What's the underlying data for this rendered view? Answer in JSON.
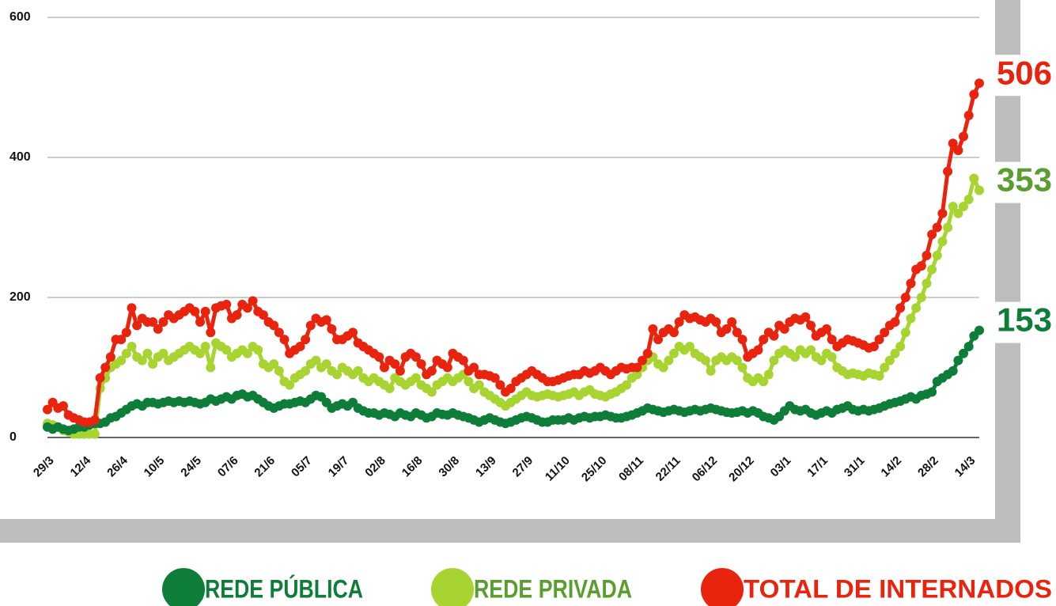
{
  "chart_data": {
    "type": "line",
    "categories": [
      "29/3",
      null,
      null,
      null,
      null,
      null,
      null,
      "12/4",
      null,
      null,
      null,
      null,
      null,
      null,
      "26/4",
      null,
      null,
      null,
      null,
      null,
      null,
      "10/5",
      null,
      null,
      null,
      null,
      null,
      null,
      "24/5",
      null,
      null,
      null,
      null,
      null,
      null,
      "07/6",
      null,
      null,
      null,
      null,
      null,
      null,
      "21/6",
      null,
      null,
      null,
      null,
      null,
      null,
      "05/7",
      null,
      null,
      null,
      null,
      null,
      null,
      "19/7",
      null,
      null,
      null,
      null,
      null,
      null,
      "02/8",
      null,
      null,
      null,
      null,
      null,
      null,
      "16/8",
      null,
      null,
      null,
      null,
      null,
      null,
      "30/8",
      null,
      null,
      null,
      null,
      null,
      null,
      "13/9",
      null,
      null,
      null,
      null,
      null,
      null,
      "27/9",
      null,
      null,
      null,
      null,
      null,
      null,
      "11/10",
      null,
      null,
      null,
      null,
      null,
      null,
      "25/10",
      null,
      null,
      null,
      null,
      null,
      null,
      "08/11",
      null,
      null,
      null,
      null,
      null,
      null,
      "22/11",
      null,
      null,
      null,
      null,
      null,
      null,
      "06/12",
      null,
      null,
      null,
      null,
      null,
      null,
      "20/12",
      null,
      null,
      null,
      null,
      null,
      null,
      "03/1",
      null,
      null,
      null,
      null,
      null,
      null,
      "17/1",
      null,
      null,
      null,
      null,
      null,
      null,
      "31/1",
      null,
      null,
      null,
      null,
      null,
      null,
      "14/2",
      null,
      null,
      null,
      null,
      null,
      null,
      "28/2",
      null,
      null,
      null,
      null,
      null,
      null,
      "14/3",
      null,
      null
    ],
    "series": [
      {
        "name": "REDE PÚBLICA",
        "color": "#0e7d3a",
        "label_color": "#0e7d3a",
        "values": [
          15,
          12,
          15,
          12,
          10,
          12,
          15,
          15,
          18,
          20,
          20,
          22,
          28,
          30,
          35,
          40,
          45,
          48,
          45,
          50,
          50,
          48,
          50,
          52,
          50,
          52,
          50,
          52,
          50,
          48,
          50,
          55,
          52,
          55,
          58,
          55,
          60,
          62,
          58,
          60,
          55,
          50,
          45,
          42,
          45,
          48,
          48,
          50,
          52,
          50,
          55,
          60,
          58,
          50,
          42,
          45,
          48,
          45,
          50,
          42,
          38,
          35,
          35,
          32,
          35,
          33,
          30,
          35,
          32,
          30,
          35,
          32,
          28,
          30,
          35,
          33,
          32,
          35,
          32,
          30,
          28,
          25,
          22,
          25,
          28,
          25,
          22,
          20,
          22,
          25,
          28,
          30,
          28,
          25,
          22,
          22,
          25,
          25,
          25,
          28,
          25,
          28,
          30,
          28,
          30,
          30,
          32,
          30,
          28,
          28,
          30,
          32,
          35,
          38,
          42,
          40,
          38,
          36,
          38,
          40,
          38,
          36,
          38,
          40,
          38,
          40,
          42,
          40,
          38,
          36,
          35,
          36,
          38,
          35,
          38,
          35,
          30,
          28,
          25,
          30,
          38,
          45,
          40,
          38,
          40,
          35,
          32,
          35,
          38,
          35,
          40,
          42,
          45,
          40,
          38,
          40,
          38,
          40,
          42,
          45,
          48,
          50,
          52,
          55,
          58,
          55,
          60,
          62,
          65,
          80,
          85,
          90,
          95,
          110,
          120,
          130,
          145,
          153
        ]
      },
      {
        "name": "REDE PRIVADA",
        "color": "#a8d432",
        "label_color": "#5a9e2f",
        "values": [
          20,
          18,
          15,
          10,
          8,
          5,
          5,
          5,
          5,
          5,
          70,
          85,
          100,
          105,
          110,
          120,
          130,
          115,
          110,
          120,
          105,
          115,
          120,
          110,
          115,
          120,
          125,
          130,
          125,
          120,
          130,
          100,
          135,
          130,
          125,
          115,
          120,
          125,
          120,
          130,
          125,
          105,
          100,
          105,
          95,
          80,
          75,
          85,
          90,
          95,
          105,
          110,
          100,
          105,
          95,
          90,
          100,
          95,
          90,
          95,
          85,
          80,
          85,
          80,
          75,
          70,
          85,
          80,
          75,
          80,
          85,
          75,
          70,
          65,
          75,
          80,
          85,
          80,
          85,
          90,
          80,
          70,
          75,
          65,
          60,
          55,
          50,
          45,
          50,
          55,
          60,
          65,
          60,
          58,
          60,
          62,
          60,
          58,
          60,
          62,
          65,
          60,
          65,
          68,
          62,
          60,
          58,
          62,
          65,
          70,
          75,
          85,
          90,
          100,
          110,
          115,
          105,
          100,
          110,
          120,
          130,
          125,
          130,
          120,
          115,
          110,
          95,
          110,
          115,
          110,
          115,
          110,
          100,
          85,
          80,
          85,
          80,
          90,
          110,
          120,
          125,
          120,
          115,
          125,
          120,
          125,
          115,
          110,
          120,
          115,
          100,
          95,
          90,
          92,
          90,
          88,
          92,
          90,
          88,
          100,
          110,
          120,
          130,
          150,
          170,
          185,
          200,
          220,
          240,
          260,
          280,
          300,
          330,
          320,
          330,
          340,
          370,
          353
        ]
      },
      {
        "name": "TOTAL DE INTERNADOS",
        "color": "#e8240f",
        "label_color": "#e8240f",
        "values": [
          40,
          50,
          42,
          45,
          32,
          28,
          25,
          22,
          22,
          25,
          85,
          100,
          115,
          140,
          140,
          150,
          185,
          160,
          170,
          165,
          165,
          155,
          165,
          175,
          170,
          175,
          180,
          185,
          180,
          165,
          180,
          150,
          185,
          188,
          190,
          170,
          175,
          190,
          185,
          195,
          180,
          175,
          165,
          160,
          150,
          140,
          120,
          125,
          130,
          140,
          160,
          170,
          165,
          168,
          155,
          140,
          140,
          145,
          150,
          135,
          130,
          125,
          120,
          115,
          100,
          110,
          105,
          95,
          115,
          120,
          115,
          105,
          90,
          95,
          110,
          105,
          100,
          120,
          115,
          110,
          95,
          100,
          90,
          90,
          88,
          85,
          75,
          65,
          70,
          80,
          85,
          90,
          95,
          90,
          85,
          80,
          80,
          82,
          85,
          88,
          90,
          90,
          95,
          92,
          95,
          100,
          95,
          90,
          95,
          100,
          98,
          100,
          100,
          110,
          120,
          155,
          140,
          150,
          155,
          150,
          165,
          175,
          170,
          172,
          168,
          165,
          170,
          165,
          150,
          155,
          165,
          150,
          140,
          115,
          120,
          125,
          140,
          150,
          145,
          160,
          155,
          165,
          170,
          168,
          172,
          160,
          145,
          150,
          155,
          140,
          130,
          135,
          140,
          138,
          135,
          132,
          128,
          130,
          140,
          150,
          160,
          165,
          185,
          200,
          220,
          240,
          245,
          260,
          290,
          300,
          320,
          380,
          420,
          410,
          430,
          460,
          490,
          506
        ]
      }
    ],
    "ylim": [
      0,
      600
    ],
    "yticks": [
      0,
      200,
      400,
      600
    ],
    "grid": true
  }
}
